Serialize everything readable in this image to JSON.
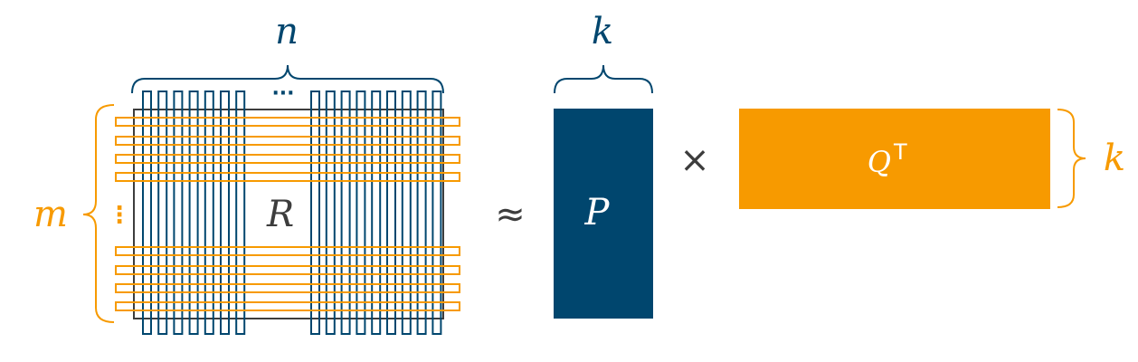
{
  "labels": {
    "n": "n",
    "m": "m",
    "k_top": "k",
    "k_right": "k",
    "R": "R",
    "P": "P",
    "Q": "Q",
    "Q_sup": "T",
    "approx": "≈",
    "times": "×",
    "h_ellipsis": "···",
    "v_ellipsis": "⋮"
  },
  "colors": {
    "blue": "#00466e",
    "orange": "#f79a00",
    "dark": "#3d3d3d",
    "white": "#ffffff"
  }
}
